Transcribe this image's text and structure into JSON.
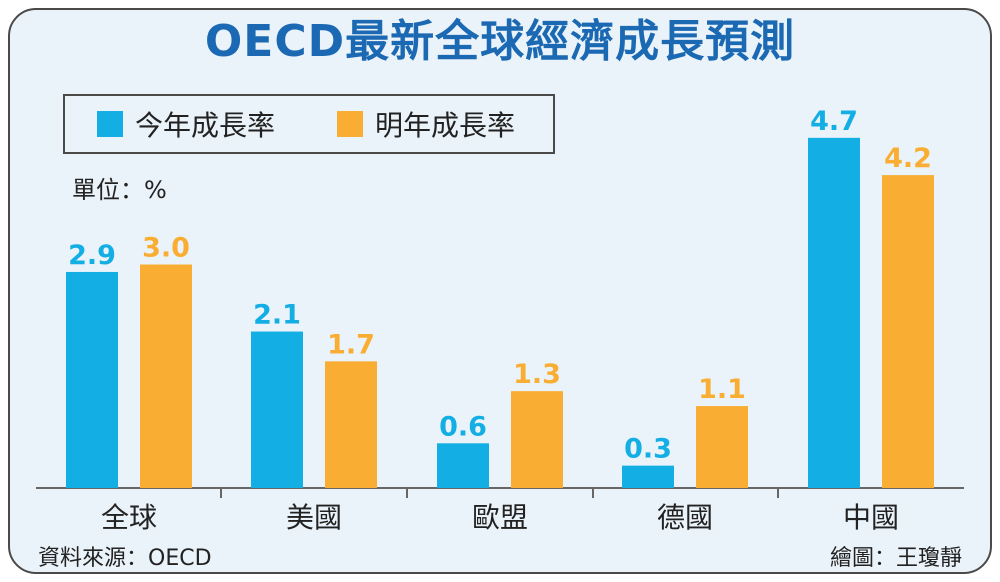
{
  "title": "OECD最新全球經濟成長預測",
  "unit_label": "單位：%",
  "source": "資料來源：OECD",
  "credit": "繪圖：王瓊靜",
  "colors": {
    "this_year": "#12aee4",
    "next_year": "#f9ae33",
    "axis": "#666666",
    "text": "#222222"
  },
  "chart_data": {
    "type": "bar",
    "title": "OECD最新全球經濟成長預測",
    "categories": [
      "全球",
      "美國",
      "歐盟",
      "德國",
      "中國"
    ],
    "series": [
      {
        "name": "今年成長率",
        "values": [
          2.9,
          2.1,
          0.6,
          0.3,
          4.7
        ]
      },
      {
        "name": "明年成長率",
        "values": [
          3.0,
          1.7,
          1.3,
          1.1,
          4.2
        ]
      }
    ],
    "ylabel": "",
    "xlabel": "",
    "ylim": [
      0,
      4.7
    ],
    "grid": false,
    "legend": "top-left"
  }
}
